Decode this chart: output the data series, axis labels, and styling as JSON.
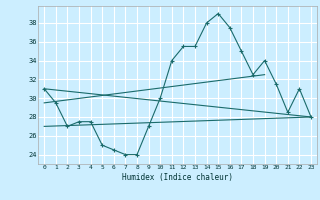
{
  "title": "",
  "xlabel": "Humidex (Indice chaleur)",
  "ylabel": "",
  "bg_color": "#cceeff",
  "line_color": "#1a6b6b",
  "grid_color": "#ffffff",
  "xlim": [
    -0.5,
    23.5
  ],
  "ylim": [
    23.0,
    39.8
  ],
  "yticks": [
    24,
    26,
    28,
    30,
    32,
    34,
    36,
    38
  ],
  "xticks": [
    0,
    1,
    2,
    3,
    4,
    5,
    6,
    7,
    8,
    9,
    10,
    11,
    12,
    13,
    14,
    15,
    16,
    17,
    18,
    19,
    20,
    21,
    22,
    23
  ],
  "series": [
    {
      "x": [
        0,
        1,
        2,
        3,
        4,
        5,
        6,
        7,
        8,
        9,
        10,
        11,
        12,
        13,
        14,
        15,
        16,
        17,
        18,
        19,
        20,
        21,
        22,
        23
      ],
      "y": [
        31,
        29.5,
        27,
        27.5,
        27.5,
        25,
        24.5,
        24,
        24,
        27,
        30,
        34,
        35.5,
        35.5,
        38,
        39,
        37.5,
        35,
        32.5,
        34,
        31.5,
        28.5,
        31,
        28
      ],
      "marker": "+"
    },
    {
      "x": [
        0,
        23
      ],
      "y": [
        31,
        28
      ],
      "marker": null
    },
    {
      "x": [
        0,
        19
      ],
      "y": [
        29.5,
        32.5
      ],
      "marker": null
    },
    {
      "x": [
        0,
        23
      ],
      "y": [
        27,
        28
      ],
      "marker": null
    }
  ]
}
